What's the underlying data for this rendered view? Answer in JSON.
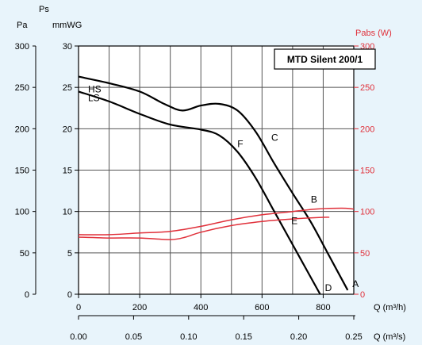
{
  "chart_data": {
    "type": "line",
    "title": "MTD Silent 200/1",
    "left_axis_titles": {
      "ps": "Ps",
      "pa": "Pa",
      "mmwg": "mmWG"
    },
    "right_axis_title": "Pabs (W)",
    "xlabel_m3h": "Q (m³/h)",
    "xlabel_m3s": "Q (m³/s)",
    "xlim_m3h": [
      0,
      900
    ],
    "ylim_pa": [
      0,
      300
    ],
    "ylim_w": [
      0,
      300
    ],
    "ylim_mmwg": [
      0,
      30
    ],
    "x_ticks_m3h": [
      "0",
      "200",
      "400",
      "600",
      "800"
    ],
    "x_ticks_m3s": [
      "0.00",
      "0.05",
      "0.10",
      "0.15",
      "0.20",
      "0.25"
    ],
    "y_ticks_pa": [
      "0",
      "50",
      "100",
      "150",
      "200",
      "250",
      "300"
    ],
    "y_ticks_mmwg": [
      "0",
      "5",
      "10",
      "15",
      "20",
      "25",
      "30"
    ],
    "y_ticks_w": [
      "0",
      "50",
      "100",
      "150",
      "200",
      "250",
      "300"
    ],
    "grid": true,
    "colors": {
      "pressure": "#000000",
      "power": "#e0303a",
      "right_axis": "#e0303a",
      "background": "#e8f4fb",
      "plot": "#ffffff"
    },
    "series": [
      {
        "name": "HS",
        "axis": "pressure",
        "color": "#000000",
        "x": [
          0,
          100,
          200,
          280,
          340,
          400,
          460,
          520,
          580,
          640,
          700,
          760,
          820,
          880
        ],
        "y": [
          263,
          255,
          245,
          230,
          222,
          228,
          230,
          222,
          196,
          158,
          122,
          87,
          46,
          5
        ]
      },
      {
        "name": "LS",
        "axis": "pressure",
        "color": "#000000",
        "x": [
          0,
          100,
          200,
          300,
          400,
          460,
          520,
          580,
          640,
          700,
          760,
          790
        ],
        "y": [
          245,
          233,
          218,
          205,
          199,
          192,
          172,
          140,
          100,
          60,
          20,
          0
        ]
      },
      {
        "name": "",
        "axis": "power",
        "color": "#e0303a",
        "x": [
          0,
          100,
          200,
          300,
          400,
          500,
          600,
          700,
          780,
          860,
          900
        ],
        "y": [
          72,
          72,
          74,
          76,
          82,
          90,
          96,
          100,
          103,
          104,
          103
        ]
      },
      {
        "name": "",
        "axis": "power",
        "color": "#e0303a",
        "x": [
          0,
          100,
          200,
          300,
          350,
          400,
          500,
          600,
          700,
          800,
          820
        ],
        "y": [
          69,
          68,
          68,
          66,
          69,
          75,
          83,
          88,
          91,
          93,
          93
        ]
      }
    ],
    "point_labels": [
      {
        "label": "A",
        "x": 880,
        "y": 5
      },
      {
        "label": "B",
        "x": 770,
        "y": 101
      },
      {
        "label": "C",
        "x": 620,
        "y": 176
      },
      {
        "label": "D",
        "x": 790,
        "y": 0
      },
      {
        "label": "E",
        "x": 680,
        "y": 81
      },
      {
        "label": "F",
        "x": 540,
        "y": 168
      }
    ]
  }
}
